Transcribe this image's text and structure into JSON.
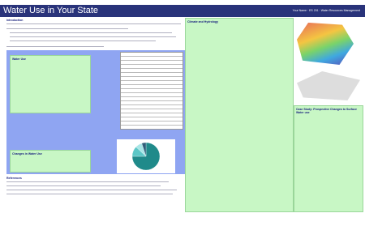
{
  "header": {
    "title": "Water Use in Your State",
    "byline": "Your Name · ES 201 · Water Resources Management"
  },
  "sections": {
    "introduction": "Introduction",
    "water_use": "Water Use",
    "changes": "Changes in Water Use",
    "climate": "Climate and Hydrology",
    "case_study": "Case Study: Prospective Changes to Surface Water use",
    "references": "References"
  },
  "pie_chart": {
    "values": [
      75,
      12,
      8,
      5
    ],
    "colors": [
      "#1f8a8a",
      "#5cc7c7",
      "#a8e6e6",
      "#2f5f7a"
    ]
  }
}
